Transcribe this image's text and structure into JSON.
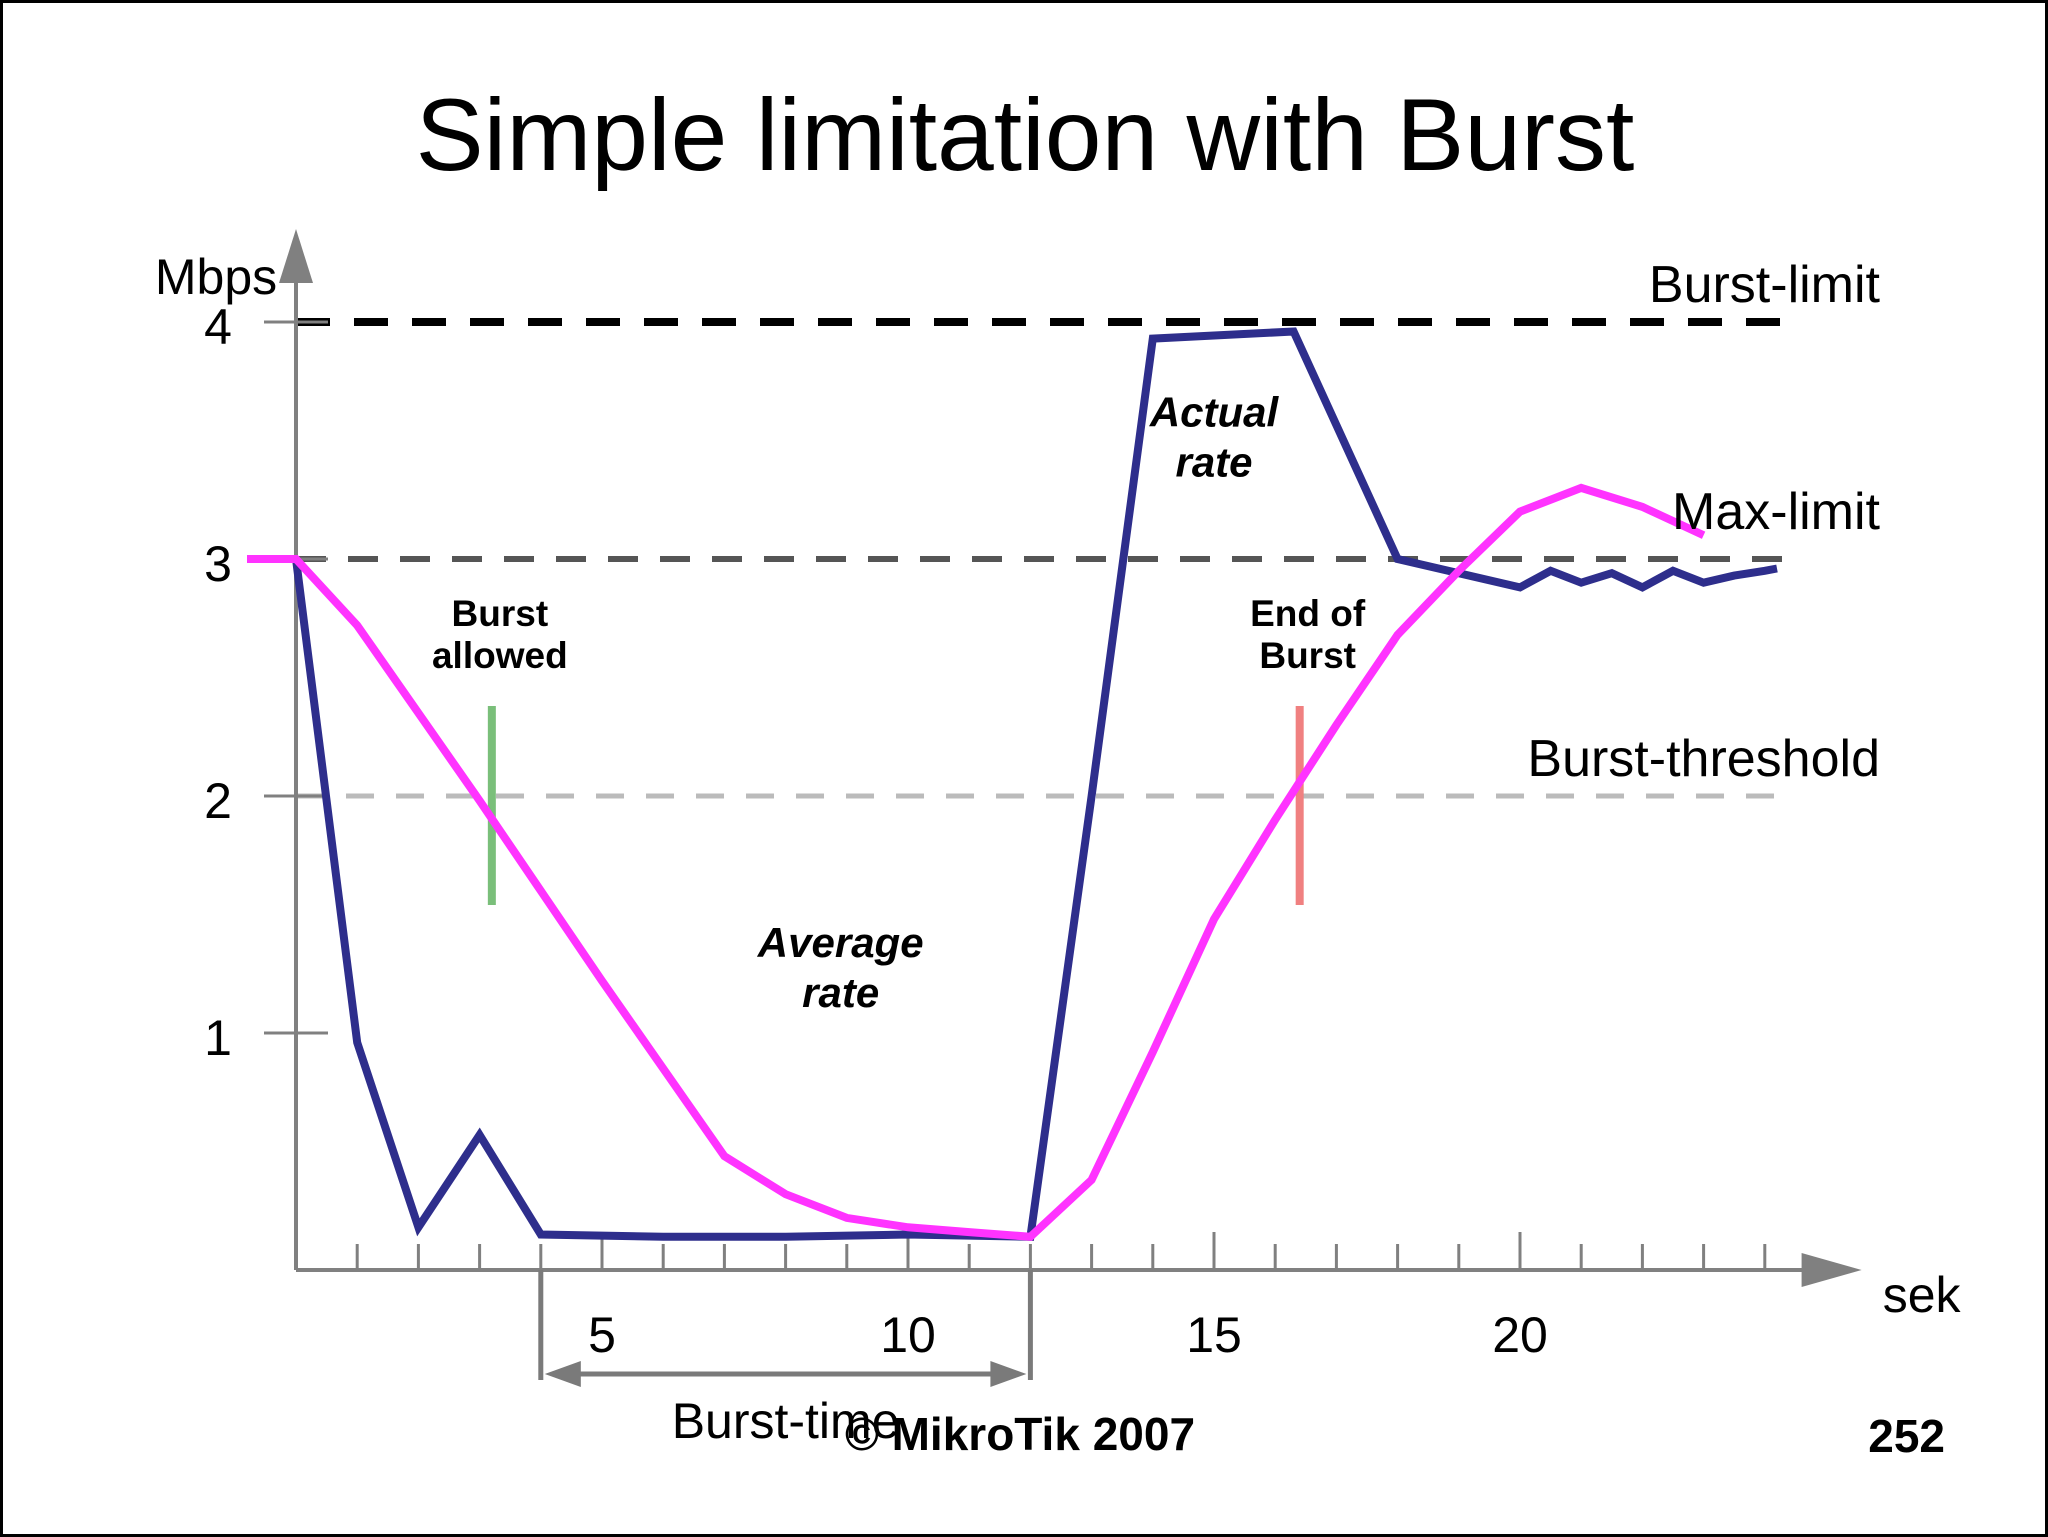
{
  "chart_data": {
    "type": "line",
    "title": "Simple limitation with Burst",
    "ylabel": "Mbps",
    "xlabel": "sek",
    "xlim": [
      0,
      25.5
    ],
    "ylim": [
      0,
      4.35
    ],
    "x_ticks": [
      5,
      10,
      15,
      20
    ],
    "y_ticks": [
      1,
      2,
      3,
      4
    ],
    "grid": false,
    "series": [
      {
        "name": "Actual rate",
        "color": "#2e2e8c",
        "x": [
          0,
          1,
          2,
          3,
          4,
          6,
          8,
          10,
          12,
          13,
          14,
          16.3,
          18,
          20,
          20.5,
          21,
          21.5,
          22,
          22.5,
          23,
          23.5,
          24,
          24.2
        ],
        "y": [
          3.0,
          0.96,
          0.18,
          0.57,
          0.15,
          0.14,
          0.14,
          0.15,
          0.14,
          2.0,
          3.93,
          3.96,
          3.0,
          2.88,
          2.95,
          2.9,
          2.94,
          2.88,
          2.95,
          2.9,
          2.93,
          2.95,
          2.96
        ]
      },
      {
        "name": "Average rate",
        "color": "#ff33ff",
        "x": [
          -0.8,
          0,
          1,
          2,
          3,
          4,
          5,
          6,
          7,
          8,
          9,
          10,
          11,
          12,
          13,
          14,
          15,
          16,
          17,
          18,
          19,
          20,
          21,
          22,
          23
        ],
        "y": [
          3.0,
          3.0,
          2.72,
          2.35,
          1.98,
          1.6,
          1.22,
          0.85,
          0.48,
          0.32,
          0.22,
          0.18,
          0.16,
          0.14,
          0.38,
          0.92,
          1.48,
          1.9,
          2.3,
          2.68,
          2.95,
          3.2,
          3.3,
          3.22,
          3.1
        ]
      }
    ],
    "reference_lines": [
      {
        "label": "Burst-limit",
        "y": 4,
        "color": "#000000"
      },
      {
        "label": "Max-limit",
        "y": 3,
        "color": "#555555"
      },
      {
        "label": "Burst-threshold",
        "y": 2,
        "color": "#bbbbbb"
      }
    ],
    "markers": [
      {
        "label_lines": [
          "Burst",
          "allowed"
        ],
        "x": 3.2,
        "color": "#7abf7a"
      },
      {
        "label_lines": [
          "End of",
          "Burst"
        ],
        "x": 16.4,
        "color": "#f08080"
      }
    ],
    "annotations": [
      {
        "lines": [
          "Actual",
          "rate"
        ]
      },
      {
        "lines": [
          "Average",
          "rate"
        ]
      }
    ],
    "burst_time": {
      "label": "Burst-time",
      "from": 4,
      "to": 12
    }
  },
  "footer": {
    "copyright": "© MikroTik 2007",
    "page_number": "252"
  }
}
